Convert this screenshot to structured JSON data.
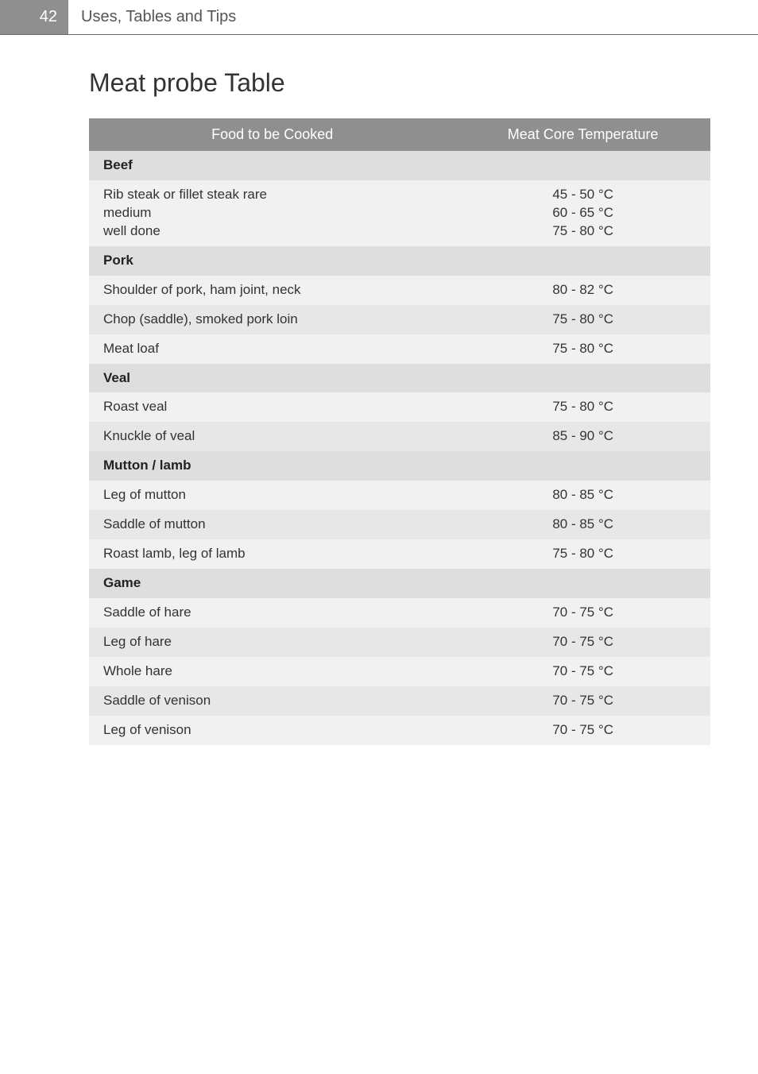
{
  "page_number": "42",
  "breadcrumb": "Uses, Tables and Tips",
  "title": "Meat probe Table",
  "columns": {
    "food": "Food to be Cooked",
    "temp": "Meat Core Temperature"
  },
  "rows": [
    {
      "type": "section",
      "food": "Beef"
    },
    {
      "type": "data",
      "shade": "light",
      "multiline": true,
      "food": "Rib steak or fillet steak rare\nmedium\nwell done",
      "temp": "45 - 50 °C\n60 - 65 °C\n75 - 80 °C"
    },
    {
      "type": "section",
      "food": "Pork"
    },
    {
      "type": "data",
      "shade": "light",
      "food": "Shoulder of pork, ham joint, neck",
      "temp": "80 - 82 °C"
    },
    {
      "type": "data",
      "shade": "mid",
      "food": "Chop (saddle), smoked pork loin",
      "temp": "75 - 80 °C"
    },
    {
      "type": "data",
      "shade": "light",
      "food": "Meat loaf",
      "temp": "75 - 80 °C"
    },
    {
      "type": "section",
      "food": "Veal"
    },
    {
      "type": "data",
      "shade": "light",
      "food": "Roast veal",
      "temp": "75 - 80 °C"
    },
    {
      "type": "data",
      "shade": "mid",
      "food": "Knuckle of veal",
      "temp": "85 - 90 °C"
    },
    {
      "type": "section",
      "food": "Mutton / lamb"
    },
    {
      "type": "data",
      "shade": "light",
      "food": "Leg of mutton",
      "temp": "80 - 85 °C"
    },
    {
      "type": "data",
      "shade": "mid",
      "food": "Saddle of mutton",
      "temp": "80 - 85 °C"
    },
    {
      "type": "data",
      "shade": "light",
      "food": "Roast lamb, leg of lamb",
      "temp": "75 - 80 °C"
    },
    {
      "type": "section",
      "food": "Game"
    },
    {
      "type": "data",
      "shade": "light",
      "food": "Saddle of hare",
      "temp": "70 - 75 °C"
    },
    {
      "type": "data",
      "shade": "mid",
      "food": "Leg of hare",
      "temp": "70 - 75 °C"
    },
    {
      "type": "data",
      "shade": "light",
      "food": "Whole hare",
      "temp": "70 - 75 °C"
    },
    {
      "type": "data",
      "shade": "mid",
      "food": "Saddle of venison",
      "temp": "70 - 75 °C"
    },
    {
      "type": "data",
      "shade": "light",
      "food": "Leg of venison",
      "temp": "70 - 75 °C"
    }
  ]
}
